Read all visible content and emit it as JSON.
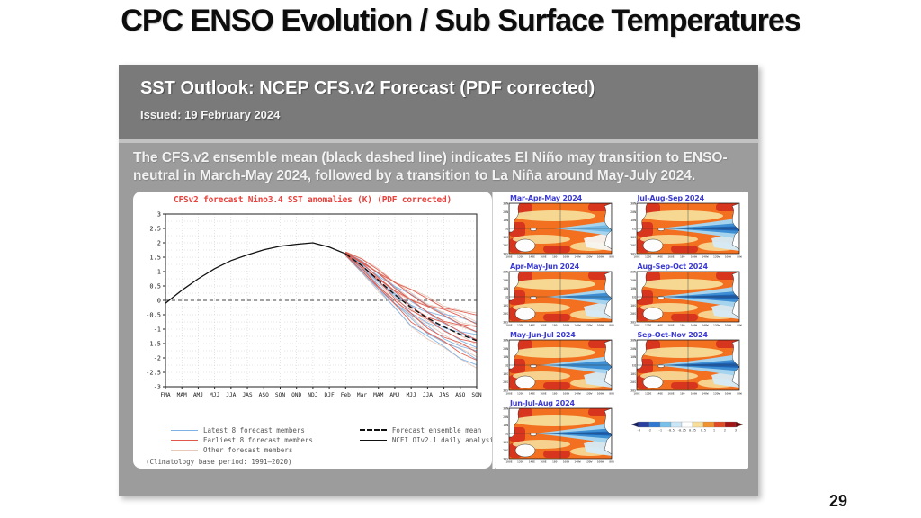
{
  "slide": {
    "title": "CPC ENSO Evolution / Sub Surface Temperatures",
    "page_number": "29"
  },
  "panel": {
    "header": {
      "title": "SST Outlook: NCEP CFS.v2 Forecast (PDF corrected)",
      "issued": "Issued: 19 February 2024"
    },
    "summary": "The CFS.v2 ensemble mean (black dashed line) indicates El Niño may transition to ENSO-neutral in March-May 2024, followed by a transition to La Niña around May-July 2024.",
    "colors": {
      "header_bg": "#7a7a7a",
      "body_bg": "#9c9c9c"
    }
  },
  "chart_data": {
    "type": "line",
    "title": "CFSv2 forecast Nino3.4 SST anomalies (K) (PDF corrected)",
    "title_color": "#e8423c",
    "x_labels": [
      "FMA",
      "MAM",
      "AMJ",
      "MJJ",
      "JJA",
      "JAS",
      "ASO",
      "SON",
      "OND",
      "NDJ",
      "DJF",
      "Feb",
      "Mar",
      "MAM",
      "AMJ",
      "MJJ",
      "JJA",
      "JAS",
      "ASO",
      "SON"
    ],
    "ylim": [
      -3,
      3
    ],
    "yticks": [
      3,
      2.5,
      2,
      1.5,
      1,
      0.5,
      0,
      -0.5,
      -1,
      -1.5,
      -2,
      -2.5,
      -3
    ],
    "grid": true,
    "series": [
      {
        "name": "NCEI OIv2.1 daily analysis",
        "style": "solid",
        "color": "#111111",
        "x_start": 0,
        "values": [
          -0.1,
          0.35,
          0.75,
          1.1,
          1.38,
          1.58,
          1.76,
          1.88,
          1.95,
          2.0,
          1.85,
          1.62
        ]
      },
      {
        "name": "Forecast ensemble mean",
        "style": "dashed",
        "color": "#111111",
        "x_start": 11,
        "values": [
          1.62,
          1.2,
          0.7,
          0.2,
          -0.25,
          -0.62,
          -0.92,
          -1.18,
          -1.4
        ]
      }
    ],
    "members": {
      "x_start": 11,
      "mean": [
        1.62,
        1.2,
        0.7,
        0.2,
        -0.25,
        -0.62,
        -0.92,
        -1.18,
        -1.4
      ],
      "spread": [
        0.05,
        0.16,
        0.28,
        0.36,
        0.44,
        0.5,
        0.56,
        0.6,
        0.64
      ],
      "groups": [
        {
          "name": "Latest 8 forecast members",
          "color": "#7fb2e5",
          "offsets": [
            0.9,
            0.55,
            0.25,
            0.0,
            -0.3,
            -0.65,
            -0.95,
            -1.3
          ]
        },
        {
          "name": "Earliest 8 forecast members",
          "color": "#e0584a",
          "offsets": [
            1.3,
            1.0,
            0.7,
            0.45,
            0.15,
            -0.2,
            -0.6,
            -1.0
          ]
        },
        {
          "name": "Other forecast members",
          "color": "#e6c7b8",
          "offsets": [
            1.4,
            1.1,
            0.8,
            0.4,
            -0.1,
            -0.5,
            -0.9,
            -1.4
          ]
        }
      ]
    },
    "legend": [
      {
        "label": "Latest 8 forecast members",
        "style": "solid",
        "color": "#7fb2e5"
      },
      {
        "label": "Earliest 8 forecast members",
        "style": "solid",
        "color": "#e0584a"
      },
      {
        "label": "Other forecast members",
        "style": "solid",
        "color": "#e6c7b8"
      },
      {
        "label": "Forecast ensemble mean",
        "style": "dashed",
        "color": "#111111"
      },
      {
        "label": "NCEI OIv2.1 daily analysis",
        "style": "solid",
        "color": "#111111"
      }
    ],
    "footnote": "(Climatology base period: 1991–2020)"
  },
  "maps": {
    "title_color": "#3a3ad0",
    "items": [
      {
        "title": "Mar-Apr-May 2024",
        "cool": 0.35
      },
      {
        "title": "Jul-Aug-Sep 2024",
        "cool": 0.8
      },
      {
        "title": "Apr-May-Jun 2024",
        "cool": 0.5
      },
      {
        "title": "Aug-Sep-Oct 2024",
        "cool": 0.85
      },
      {
        "title": "May-Jun-Jul 2024",
        "cool": 0.65
      },
      {
        "title": "Sep-Oct-Nov 2024",
        "cool": 0.9
      },
      {
        "title": "Jun-Jul-Aug 2024",
        "cool": 0.75
      }
    ],
    "lat_labels": [
      "30N",
      "20N",
      "10N",
      "EQ",
      "10S",
      "20S",
      "30S"
    ],
    "lon_labels": [
      "100E",
      "120E",
      "140E",
      "160E",
      "180",
      "160W",
      "140W",
      "120W",
      "100W",
      "80W"
    ],
    "colorbar": {
      "ticks": [
        "-3",
        "-2",
        "-1",
        "-0.5",
        "-0.25",
        "0.25",
        "0.5",
        "1",
        "2",
        "3"
      ],
      "colors": [
        "#2b3f9e",
        "#2e78d2",
        "#79c1ea",
        "#c9e6f7",
        "#ffffff",
        "#f7df9b",
        "#f29130",
        "#e04a25",
        "#a31414"
      ],
      "arrow_left": "#151d66",
      "arrow_right": "#6b0b0b"
    }
  }
}
